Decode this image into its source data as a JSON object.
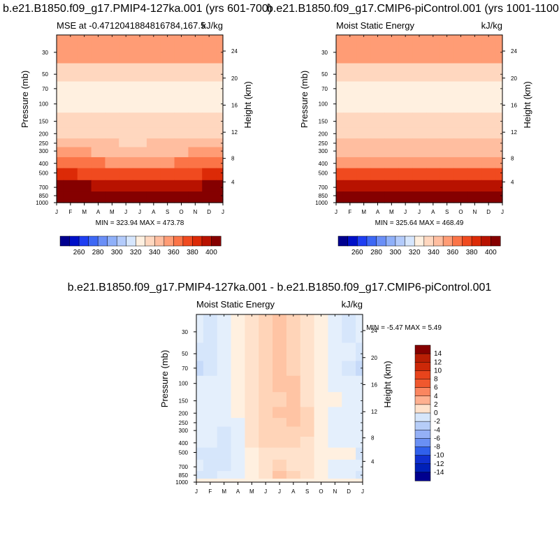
{
  "chart_data": [
    {
      "type": "heatmap",
      "panel": "top-left",
      "case_title": "b.e21.B1850.f09_g17.PMIP4-127ka.001 (yrs 601-700)",
      "subtitle": "MSE at -0.4712041884816784,167.5",
      "units": "kJ/kg",
      "ylabel": "Pressure (mb)",
      "ylabel_right": "Height (km)",
      "x_ticks": [
        "J",
        "F",
        "M",
        "A",
        "M",
        "J",
        "J",
        "A",
        "S",
        "O",
        "N",
        "D",
        "J"
      ],
      "y_ticks": [
        30,
        50,
        70,
        100,
        150,
        200,
        250,
        300,
        400,
        500,
        700,
        850,
        1000
      ],
      "y_right_ticks": [
        4,
        8,
        12,
        16,
        20,
        24
      ],
      "ylim": [
        1000,
        20
      ],
      "min_label": "MIN = 323.94 MAX = 473.78",
      "min": 323.94,
      "max": 473.78,
      "colorbar": {
        "orientation": "horizontal",
        "labels": [
          "260",
          "280",
          "300",
          "320",
          "340",
          "360",
          "380",
          "400"
        ],
        "levels": [
          250,
          260,
          270,
          280,
          290,
          300,
          310,
          320,
          330,
          340,
          350,
          360,
          370,
          380,
          390,
          400
        ],
        "colors": [
          "#00008f",
          "#0010c8",
          "#1f3ff2",
          "#3d68f5",
          "#6a8ff7",
          "#8fb0f9",
          "#b3cbfb",
          "#d6e6fd",
          "#fff0e0",
          "#ffd7bf",
          "#ffbea0",
          "#ff9c75",
          "#fb7447",
          "#f04a1f",
          "#dc2a07",
          "#b81200",
          "#850000"
        ]
      },
      "values": [
        [
          351,
          351,
          352,
          353,
          353,
          353,
          353,
          352,
          352,
          351,
          351,
          351,
          351
        ],
        [
          339,
          337,
          337,
          337,
          336,
          336,
          334,
          335,
          335,
          334,
          336,
          338,
          339
        ],
        [
          324,
          323,
          322,
          322,
          323,
          324,
          325,
          325,
          324,
          323,
          323,
          323,
          324
        ],
        [
          322,
          322,
          321,
          320,
          321,
          322,
          324,
          324,
          323,
          322,
          321,
          321,
          322
        ],
        [
          332,
          332,
          331,
          331,
          332,
          333,
          333,
          333,
          333,
          332,
          332,
          332,
          332
        ],
        [
          338,
          338,
          338,
          337,
          336,
          335,
          335,
          336,
          336,
          337,
          337,
          338,
          338
        ],
        [
          345,
          344,
          343,
          342,
          340,
          339,
          339,
          340,
          341,
          342,
          343,
          344,
          345
        ],
        [
          352,
          351,
          350,
          349,
          347,
          346,
          345,
          346,
          347,
          348,
          350,
          351,
          352
        ],
        [
          366,
          365,
          363,
          361,
          359,
          357,
          356,
          356,
          358,
          360,
          362,
          364,
          366
        ],
        [
          383,
          381,
          379,
          376,
          373,
          371,
          370,
          370,
          372,
          375,
          378,
          381,
          383
        ],
        [
          404,
          403,
          401,
          398,
          395,
          392,
          391,
          391,
          393,
          396,
          399,
          402,
          404
        ],
        [
          412,
          412,
          411,
          410,
          409,
          408,
          407,
          407,
          408,
          409,
          410,
          411,
          412
        ],
        [
          430,
          430,
          430,
          430,
          430,
          430,
          430,
          430,
          430,
          430,
          430,
          430,
          430
        ]
      ]
    },
    {
      "type": "heatmap",
      "panel": "top-right",
      "case_title": "b.e21.B1850.f09_g17.CMIP6-piControl.001 (yrs 1001-1100)",
      "subtitle": "Moist Static Energy",
      "units": "kJ/kg",
      "ylabel": "Pressure (mb)",
      "ylabel_right": "Height (km)",
      "x_ticks": [
        "J",
        "F",
        "M",
        "A",
        "M",
        "J",
        "J",
        "A",
        "S",
        "O",
        "N",
        "D",
        "J"
      ],
      "y_ticks": [
        30,
        50,
        70,
        100,
        150,
        200,
        250,
        300,
        400,
        500,
        700,
        850,
        1000
      ],
      "y_right_ticks": [
        4,
        8,
        12,
        16,
        20,
        24
      ],
      "ylim": [
        1000,
        20
      ],
      "min_label": "MIN = 325.64 MAX = 468.49",
      "min": 325.64,
      "max": 468.49,
      "colorbar": {
        "orientation": "horizontal",
        "labels": [
          "260",
          "280",
          "300",
          "320",
          "340",
          "360",
          "380",
          "400"
        ],
        "levels": [
          250,
          260,
          270,
          280,
          290,
          300,
          310,
          320,
          330,
          340,
          350,
          360,
          370,
          380,
          390,
          400
        ],
        "colors": [
          "#00008f",
          "#0010c8",
          "#1f3ff2",
          "#3d68f5",
          "#6a8ff7",
          "#8fb0f9",
          "#b3cbfb",
          "#d6e6fd",
          "#fff0e0",
          "#ffd7bf",
          "#ffbea0",
          "#ff9c75",
          "#fb7447",
          "#f04a1f",
          "#dc2a07",
          "#b81200",
          "#850000"
        ]
      },
      "values": [
        [
          352,
          352,
          352,
          352,
          352,
          352,
          352,
          352,
          352,
          352,
          352,
          352,
          352
        ],
        [
          338,
          337,
          337,
          337,
          337,
          336,
          334,
          334,
          335,
          335,
          336,
          337,
          338
        ],
        [
          325,
          324,
          324,
          324,
          324,
          324,
          323,
          322,
          322,
          323,
          324,
          325,
          325
        ],
        [
          323,
          323,
          322,
          322,
          322,
          322,
          323,
          323,
          322,
          322,
          322,
          323,
          323
        ],
        [
          334,
          334,
          334,
          333,
          333,
          333,
          333,
          333,
          333,
          333,
          334,
          334,
          334
        ],
        [
          338,
          338,
          338,
          338,
          337,
          337,
          337,
          337,
          337,
          337,
          338,
          338,
          338
        ],
        [
          342,
          342,
          342,
          342,
          341,
          341,
          341,
          341,
          341,
          341,
          342,
          342,
          342
        ],
        [
          346,
          346,
          346,
          346,
          346,
          345,
          345,
          345,
          345,
          346,
          346,
          346,
          346
        ],
        [
          358,
          358,
          358,
          358,
          357,
          357,
          357,
          357,
          357,
          357,
          358,
          358,
          358
        ],
        [
          372,
          372,
          372,
          371,
          371,
          371,
          371,
          371,
          371,
          371,
          372,
          372,
          372
        ],
        [
          398,
          398,
          398,
          397,
          396,
          396,
          396,
          396,
          396,
          397,
          398,
          398,
          398
        ],
        [
          409,
          409,
          409,
          409,
          409,
          409,
          409,
          409,
          409,
          409,
          409,
          409,
          409
        ],
        [
          425,
          425,
          425,
          425,
          425,
          425,
          425,
          425,
          425,
          425,
          425,
          425,
          425
        ]
      ]
    },
    {
      "type": "heatmap",
      "panel": "bottom",
      "case_title": "b.e21.B1850.f09_g17.PMIP4-127ka.001 - b.e21.B1850.f09_g17.CMIP6-piControl.001",
      "subtitle": "Moist Static Energy",
      "units": "kJ/kg",
      "ylabel": "Pressure (mb)",
      "ylabel_right": "Height (km)",
      "x_ticks": [
        "J",
        "F",
        "M",
        "A",
        "M",
        "J",
        "J",
        "A",
        "S",
        "O",
        "N",
        "D",
        "J"
      ],
      "y_ticks": [
        30,
        50,
        70,
        100,
        150,
        200,
        250,
        300,
        400,
        500,
        700,
        850,
        1000
      ],
      "y_right_ticks": [
        4,
        8,
        12,
        16,
        20,
        24
      ],
      "ylim": [
        1000,
        20
      ],
      "min_label": "MIN =  -5.47 MAX =   5.49",
      "min": -5.47,
      "max": 5.49,
      "colorbar": {
        "orientation": "vertical",
        "labels": [
          "14",
          "12",
          "10",
          "8",
          "6",
          "4",
          "2",
          "0",
          "-2",
          "-4",
          "-6",
          "-8",
          "-10",
          "-12",
          "-14"
        ],
        "levels": [
          -15,
          -14,
          -13,
          -12,
          -11,
          -10,
          -9,
          -8,
          -7,
          -6,
          -5,
          -4,
          -3,
          -2,
          -1,
          0,
          1,
          2,
          3,
          4,
          5,
          6,
          7,
          8,
          9,
          10,
          11,
          12,
          13,
          14,
          15
        ],
        "colors": [
          "#00008f",
          "#00109e",
          "#0020b8",
          "#1030d0",
          "#2048e0",
          "#3060ec",
          "#4a78f2",
          "#6a90f4",
          "#7ea0f4",
          "#94b0f6",
          "#a8c2f8",
          "#b6cdf8",
          "#c6daf9",
          "#d6e6fb",
          "#e4effc",
          "#fff0e0",
          "#ffe2cc",
          "#ffd4b8",
          "#ffc4a4",
          "#ffb090",
          "#ff9c7a",
          "#fb8660",
          "#f66e48",
          "#f0582e",
          "#e8441c",
          "#dc3410",
          "#cc2808",
          "#b81e04",
          "#a01402",
          "#8a0a00",
          "#850000",
          "#850000"
        ]
      },
      "values": [
        [
          -1.5,
          -3.0,
          -1.3,
          -0.5,
          0.5,
          1.8,
          2.4,
          1.7,
          0.6,
          -0.6,
          -1.5,
          -2.4,
          -1.5
        ],
        [
          -2.8,
          -2.5,
          -1.3,
          -0.5,
          0.5,
          1.9,
          2.4,
          1.7,
          0.5,
          -0.6,
          -1.3,
          -2.0,
          -2.8
        ],
        [
          -3.4,
          -2.7,
          -1.5,
          -0.5,
          0.5,
          1.8,
          2.6,
          1.9,
          0.7,
          -0.5,
          -1.4,
          -2.1,
          -3.4
        ],
        [
          -1.6,
          -2.0,
          -1.8,
          -0.6,
          0.5,
          1.4,
          2.1,
          2.0,
          0.9,
          -0.6,
          -1.3,
          -1.6,
          -1.6
        ],
        [
          -1.2,
          -1.6,
          -1.8,
          -1.0,
          0.3,
          1.1,
          1.9,
          2.1,
          0.9,
          -0.3,
          -1.0,
          -1.2,
          -1.2
        ],
        [
          -1.2,
          -1.5,
          -1.8,
          -1.0,
          0.3,
          1.1,
          2.0,
          2.2,
          1.2,
          -0.3,
          -1.1,
          -1.2,
          -1.2
        ],
        [
          -1.5,
          -1.5,
          -2.0,
          -1.1,
          0.3,
          1.2,
          1.7,
          2.1,
          1.4,
          -0.2,
          -1.2,
          -1.3,
          -1.5
        ],
        [
          -1.7,
          -1.5,
          -2.2,
          -1.3,
          0.4,
          1.3,
          1.5,
          1.7,
          1.4,
          -0.3,
          -1.3,
          -1.5,
          -1.7
        ],
        [
          -2.0,
          -2.0,
          -2.5,
          -1.3,
          0.5,
          1.3,
          1.3,
          1.0,
          0.3,
          -0.5,
          -1.1,
          -1.8,
          -2.0
        ],
        [
          -2.1,
          -2.1,
          -2.5,
          -1.5,
          -0.2,
          0.5,
          0.8,
          0.5,
          0.1,
          -0.3,
          -0.4,
          -1.0,
          -2.1
        ],
        [
          -2.0,
          -2.2,
          -2.3,
          -1.7,
          -0.7,
          0.3,
          1.1,
          0.6,
          0.3,
          -0.8,
          -1.5,
          -2.0,
          -2.0
        ],
        [
          -2.1,
          -2.2,
          -1.8,
          -1.5,
          -0.5,
          0.5,
          2.2,
          1.0,
          0.5,
          -0.6,
          -1.2,
          -2.0,
          -2.1
        ],
        [
          -0.6,
          -0.6,
          -0.6,
          -0.6,
          -0.6,
          -0.6,
          -0.6,
          -0.6,
          -0.6,
          -0.6,
          -0.6,
          -0.6,
          -0.6
        ]
      ]
    }
  ]
}
